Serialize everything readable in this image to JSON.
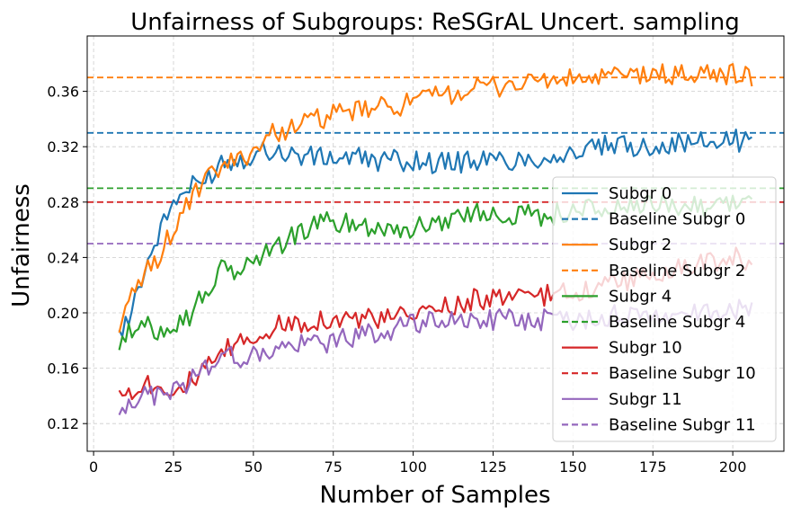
{
  "chart_data": {
    "type": "line",
    "title": "Unfairness of Subgroups: ReSGrAL Uncert. sampling",
    "xlabel": "Number of Samples",
    "ylabel": "Unfairness",
    "xlim": [
      -2,
      216
    ],
    "ylim": [
      0.1,
      0.4
    ],
    "xticks": [
      0,
      25,
      50,
      75,
      100,
      125,
      150,
      175,
      200
    ],
    "yticks": [
      0.12,
      0.16,
      0.2,
      0.24,
      0.28,
      0.32,
      0.36
    ],
    "ytick_labels": [
      "0.12",
      "0.16",
      "0.20",
      "0.24",
      "0.28",
      "0.32",
      "0.36"
    ],
    "grid": true,
    "legend_position": "lower-right",
    "colors": {
      "subgr0": "#1f77b4",
      "subgr2": "#ff7f0e",
      "subgr4": "#2ca02c",
      "subgr10": "#d62728",
      "subgr11": "#9467bd"
    },
    "series": [
      {
        "name": "Subgr 0",
        "color": "#1f77b4",
        "style": "solid",
        "x": [
          8,
          15,
          20,
          25,
          30,
          35,
          40,
          45,
          50,
          55,
          60,
          70,
          80,
          90,
          100,
          110,
          120,
          130,
          140,
          150,
          160,
          170,
          180,
          190,
          200,
          206
        ],
        "y": [
          0.18,
          0.225,
          0.255,
          0.28,
          0.29,
          0.295,
          0.31,
          0.31,
          0.315,
          0.318,
          0.315,
          0.312,
          0.312,
          0.31,
          0.31,
          0.308,
          0.31,
          0.31,
          0.312,
          0.315,
          0.32,
          0.32,
          0.322,
          0.323,
          0.325,
          0.322
        ]
      },
      {
        "name": "Baseline Subgr 0",
        "color": "#1f77b4",
        "style": "dashed",
        "y": 0.33
      },
      {
        "name": "Subgr 2",
        "color": "#ff7f0e",
        "style": "solid",
        "x": [
          8,
          15,
          20,
          25,
          30,
          35,
          40,
          45,
          50,
          55,
          60,
          70,
          80,
          90,
          100,
          110,
          120,
          130,
          140,
          150,
          160,
          170,
          180,
          190,
          200,
          206
        ],
        "y": [
          0.19,
          0.225,
          0.24,
          0.26,
          0.28,
          0.295,
          0.305,
          0.31,
          0.318,
          0.328,
          0.333,
          0.34,
          0.345,
          0.348,
          0.352,
          0.358,
          0.362,
          0.365,
          0.368,
          0.368,
          0.37,
          0.372,
          0.372,
          0.372,
          0.373,
          0.37
        ]
      },
      {
        "name": "Baseline Subgr 2",
        "color": "#ff7f0e",
        "style": "dashed",
        "y": 0.37
      },
      {
        "name": "Subgr 4",
        "color": "#2ca02c",
        "style": "solid",
        "x": [
          8,
          15,
          20,
          25,
          30,
          35,
          40,
          45,
          50,
          55,
          60,
          70,
          80,
          90,
          100,
          110,
          120,
          130,
          140,
          150,
          160,
          170,
          180,
          190,
          200,
          206
        ],
        "y": [
          0.18,
          0.19,
          0.188,
          0.192,
          0.198,
          0.215,
          0.23,
          0.23,
          0.238,
          0.245,
          0.252,
          0.265,
          0.265,
          0.262,
          0.26,
          0.268,
          0.272,
          0.272,
          0.27,
          0.274,
          0.275,
          0.276,
          0.278,
          0.278,
          0.28,
          0.282
        ]
      },
      {
        "name": "Baseline Subgr 4",
        "color": "#2ca02c",
        "style": "dashed",
        "y": 0.29
      },
      {
        "name": "Subgr 10",
        "color": "#d62728",
        "style": "solid",
        "x": [
          8,
          15,
          20,
          25,
          30,
          35,
          40,
          45,
          50,
          55,
          60,
          70,
          80,
          90,
          100,
          110,
          120,
          130,
          140,
          150,
          160,
          170,
          180,
          190,
          200,
          206
        ],
        "y": [
          0.138,
          0.15,
          0.148,
          0.145,
          0.15,
          0.158,
          0.17,
          0.178,
          0.182,
          0.188,
          0.192,
          0.195,
          0.196,
          0.195,
          0.198,
          0.205,
          0.21,
          0.21,
          0.212,
          0.215,
          0.22,
          0.225,
          0.23,
          0.235,
          0.24,
          0.238
        ]
      },
      {
        "name": "Baseline Subgr 10",
        "color": "#d62728",
        "style": "dashed",
        "y": 0.28
      },
      {
        "name": "Subgr 11",
        "color": "#9467bd",
        "style": "solid",
        "x": [
          8,
          15,
          20,
          25,
          30,
          35,
          40,
          45,
          50,
          55,
          60,
          70,
          80,
          90,
          100,
          110,
          120,
          130,
          140,
          150,
          160,
          170,
          180,
          190,
          200,
          206
        ],
        "y": [
          0.133,
          0.14,
          0.14,
          0.145,
          0.15,
          0.16,
          0.17,
          0.168,
          0.168,
          0.172,
          0.175,
          0.178,
          0.182,
          0.186,
          0.192,
          0.195,
          0.195,
          0.195,
          0.195,
          0.195,
          0.198,
          0.198,
          0.198,
          0.2,
          0.202,
          0.205
        ]
      },
      {
        "name": "Baseline Subgr 11",
        "color": "#9467bd",
        "style": "dashed",
        "y": 0.25
      }
    ]
  }
}
